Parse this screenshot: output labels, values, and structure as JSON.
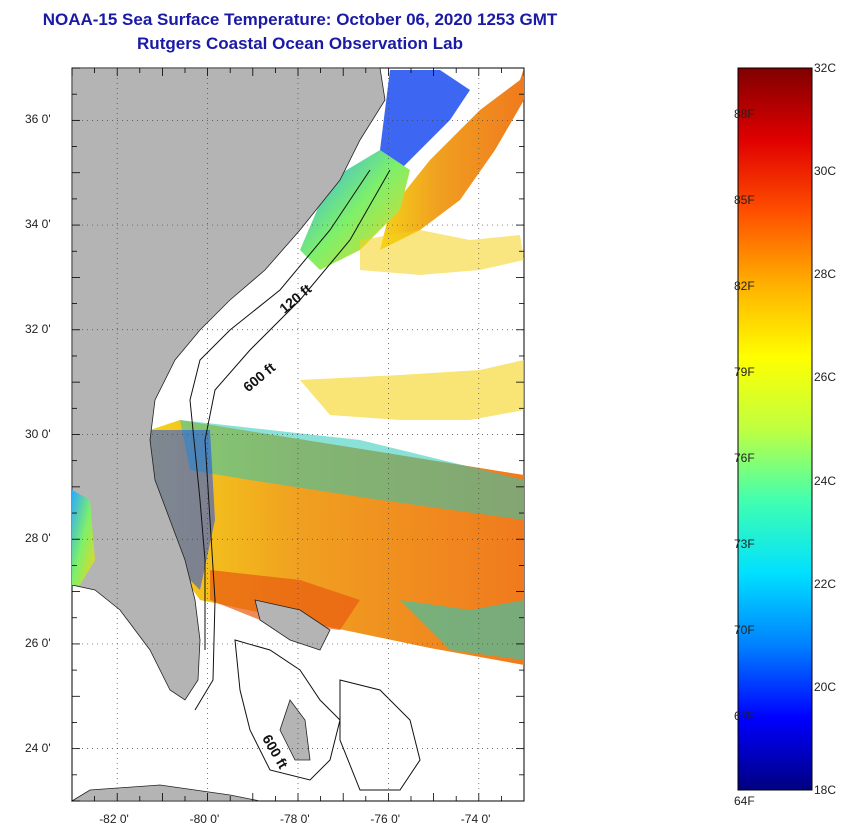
{
  "title": {
    "line1": "NOAA-15 Sea Surface Temperature:  October 06, 2020 1253 GMT",
    "line2": "Rutgers Coastal Ocean Observation Lab"
  },
  "map": {
    "lat_labels": [
      {
        "label": "36 0'",
        "lat": 36
      },
      {
        "label": "34 0'",
        "lat": 34
      },
      {
        "label": "32 0'",
        "lat": 32
      },
      {
        "label": "30 0'",
        "lat": 30
      },
      {
        "label": "28 0'",
        "lat": 28
      },
      {
        "label": "26 0'",
        "lat": 26
      },
      {
        "label": "24 0'",
        "lat": 24
      }
    ],
    "lon_labels": [
      {
        "label": "-82 0'",
        "lon": -82
      },
      {
        "label": "-80 0'",
        "lon": -80
      },
      {
        "label": "-78 0'",
        "lon": -78
      },
      {
        "label": "-76 0'",
        "lon": -76
      },
      {
        "label": "-74 0'",
        "lon": -74
      }
    ],
    "lat_range": [
      23,
      37
    ],
    "lon_range": [
      -83,
      -73
    ],
    "contour_labels": [
      {
        "text": "120 ft",
        "lon": -78.3,
        "lat": 32.3
      },
      {
        "text": "600 ft",
        "lon": -79.1,
        "lat": 30.8
      },
      {
        "text": "600 ft",
        "lon": -78.8,
        "lat": 24.2
      }
    ],
    "colors": {
      "land": "#b4b4b4",
      "cloud": "#ffffff",
      "ocean_warm": "#f07a1e",
      "ocean_mid": "#f5d21a",
      "ocean_cool": "#29c9b8",
      "ocean_cold": "#1b4cf0"
    }
  },
  "color_scale": {
    "fahrenheit_labels": [
      "88F",
      "85F",
      "82F",
      "79F",
      "76F",
      "73F",
      "70F",
      "67F",
      "64F"
    ],
    "celsius_labels": [
      "32C",
      "30C",
      "28C",
      "26C",
      "24C",
      "22C",
      "20C",
      "18C"
    ],
    "range_c": [
      18,
      32
    ],
    "stops": [
      "#000080",
      "#0000ff",
      "#0080ff",
      "#00e0ff",
      "#40ffb0",
      "#c0ff40",
      "#ffff00",
      "#ffb000",
      "#ff5000",
      "#e00000",
      "#800000"
    ]
  }
}
